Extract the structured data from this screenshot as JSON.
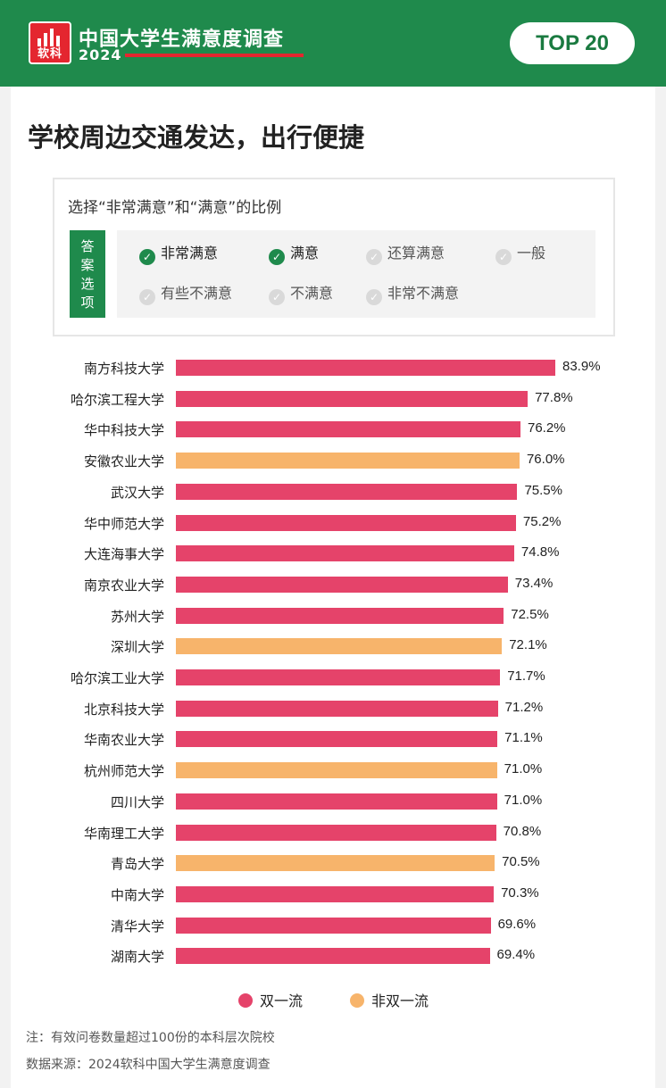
{
  "header": {
    "logo_text": "软科",
    "title": "中国大学生满意度调查",
    "year": "2024",
    "badge": "TOP 20"
  },
  "main_title": "学校周边交通发达，出行便捷",
  "filter": {
    "question": "选择“非常满意”和“满意”的比例",
    "tag": [
      "答",
      "案",
      "选",
      "项"
    ],
    "options": [
      {
        "label": "非常满意",
        "checked": true
      },
      {
        "label": "满意",
        "checked": true
      },
      {
        "label": "还算满意",
        "checked": false
      },
      {
        "label": "一般",
        "checked": false
      },
      {
        "label": "有些不满意",
        "checked": false
      },
      {
        "label": "不满意",
        "checked": false
      },
      {
        "label": "非常不满意",
        "checked": false
      }
    ]
  },
  "colors": {
    "shuangyiliu": "#e5436a",
    "fei_shuangyiliu": "#f7b46b",
    "brand_green": "#1f8a4c"
  },
  "chart_data": {
    "type": "bar",
    "orientation": "horizontal",
    "categories": [
      "南方科技大学",
      "哈尔滨工程大学",
      "华中科技大学",
      "安徽农业大学",
      "武汉大学",
      "华中师范大学",
      "大连海事大学",
      "南京农业大学",
      "苏州大学",
      "深圳大学",
      "哈尔滨工业大学",
      "北京科技大学",
      "华南农业大学",
      "杭州师范大学",
      "四川大学",
      "华南理工大学",
      "青岛大学",
      "中南大学",
      "清华大学",
      "湖南大学"
    ],
    "values": [
      83.9,
      77.8,
      76.2,
      76.0,
      75.5,
      75.2,
      74.8,
      73.4,
      72.5,
      72.1,
      71.7,
      71.2,
      71.1,
      71.0,
      71.0,
      70.8,
      70.5,
      70.3,
      69.6,
      69.4
    ],
    "value_labels": [
      "83.9%",
      "77.8%",
      "76.2%",
      "76.0%",
      "75.5%",
      "75.2%",
      "74.8%",
      "73.4%",
      "72.5%",
      "72.1%",
      "71.7%",
      "71.2%",
      "71.1%",
      "71.0%",
      "71.0%",
      "70.8%",
      "70.5%",
      "70.3%",
      "69.6%",
      "69.4%"
    ],
    "groups": [
      "双一流",
      "双一流",
      "双一流",
      "非双一流",
      "双一流",
      "双一流",
      "双一流",
      "双一流",
      "双一流",
      "非双一流",
      "双一流",
      "双一流",
      "双一流",
      "非双一流",
      "双一流",
      "双一流",
      "非双一流",
      "双一流",
      "双一流",
      "双一流"
    ],
    "legend": [
      "双一流",
      "非双一流"
    ],
    "legend_position": "bottom",
    "grid": false
  },
  "footnotes": {
    "note": "注：有效问卷数量超过100份的本科层次院校",
    "source": "数据来源：2024软科中国大学生满意度调查"
  }
}
